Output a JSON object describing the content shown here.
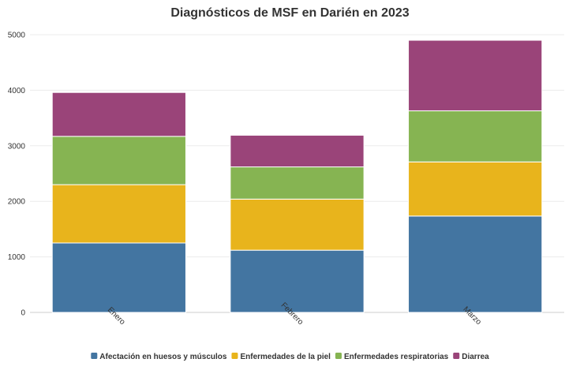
{
  "chart_data": {
    "type": "bar",
    "stacked": true,
    "title": "Diagnósticos de MSF en Darién en 2023",
    "xlabel": "",
    "ylabel": "",
    "categories": [
      "Enero",
      "Febrero",
      "Marzo"
    ],
    "ylim": [
      0,
      5000
    ],
    "yticks": [
      0,
      1000,
      2000,
      3000,
      4000,
      5000
    ],
    "grid": true,
    "legend_position": "bottom",
    "series": [
      {
        "name": "Afectación en huesos y músculos",
        "color": "#4375a1",
        "values": [
          1250,
          1120,
          1735
        ]
      },
      {
        "name": "Enfermedades de la piel",
        "color": "#e8b41c",
        "values": [
          1050,
          920,
          975
        ]
      },
      {
        "name": "Enfermedades respiratorias",
        "color": "#86b452",
        "values": [
          870,
          580,
          920
        ]
      },
      {
        "name": "Diarrea",
        "color": "#9a4479",
        "values": [
          790,
          570,
          1270
        ]
      }
    ]
  }
}
